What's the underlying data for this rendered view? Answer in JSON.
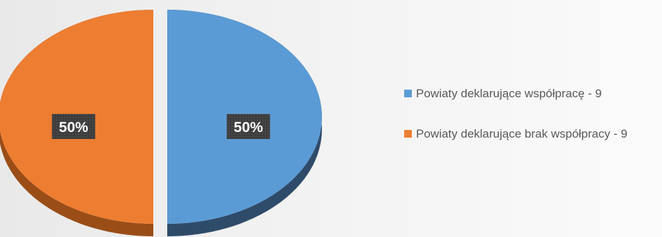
{
  "chart_data": {
    "type": "pie",
    "style": "3d-exploded",
    "series": [
      {
        "name": "Powiaty deklarujące współpracę - 9",
        "value": 9,
        "percent_label": "50%",
        "color": "#5b9bd5",
        "side_color": "#2f4b6a"
      },
      {
        "name": "Powiaty deklarujące brak współpracy - 9",
        "value": 9,
        "percent_label": "50%",
        "color": "#ed7d31",
        "side_color": "#9a4d17"
      }
    ],
    "legend": {
      "placement": "right"
    }
  }
}
